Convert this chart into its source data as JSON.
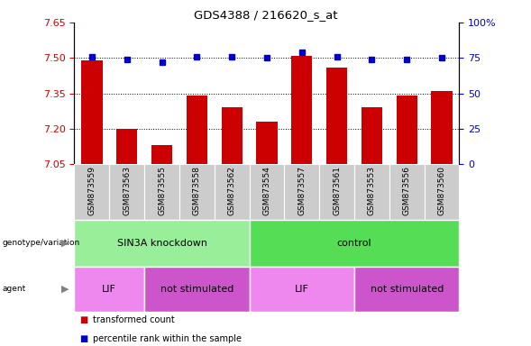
{
  "title": "GDS4388 / 216620_s_at",
  "samples": [
    "GSM873559",
    "GSM873563",
    "GSM873555",
    "GSM873558",
    "GSM873562",
    "GSM873554",
    "GSM873557",
    "GSM873561",
    "GSM873553",
    "GSM873556",
    "GSM873560"
  ],
  "bar_values": [
    7.49,
    7.2,
    7.13,
    7.34,
    7.29,
    7.23,
    7.51,
    7.46,
    7.29,
    7.34,
    7.36
  ],
  "percentile_values": [
    76,
    74,
    72,
    76,
    76,
    75,
    79,
    76,
    74,
    74,
    75
  ],
  "bar_color": "#cc0000",
  "percentile_color": "#0000cc",
  "ylim_left": [
    7.05,
    7.65
  ],
  "ylim_right": [
    0,
    100
  ],
  "yticks_left": [
    7.05,
    7.2,
    7.35,
    7.5,
    7.65
  ],
  "yticks_right": [
    0,
    25,
    50,
    75,
    100
  ],
  "ytick_labels_right": [
    "0",
    "25",
    "50",
    "75",
    "100%"
  ],
  "grid_values": [
    7.2,
    7.35,
    7.5
  ],
  "groups": [
    {
      "label": "SIN3A knockdown",
      "start": 0,
      "end": 4,
      "color": "#99ee99"
    },
    {
      "label": "control",
      "start": 5,
      "end": 10,
      "color": "#55dd55"
    }
  ],
  "agents": [
    {
      "label": "LIF",
      "start": 0,
      "end": 1,
      "color": "#ee88ee"
    },
    {
      "label": "not stimulated",
      "start": 2,
      "end": 4,
      "color": "#cc55cc"
    },
    {
      "label": "LIF",
      "start": 5,
      "end": 7,
      "color": "#ee88ee"
    },
    {
      "label": "not stimulated",
      "start": 8,
      "end": 10,
      "color": "#cc55cc"
    }
  ],
  "sample_bg_color": "#cccccc",
  "legend_items": [
    {
      "label": "transformed count",
      "color": "#cc0000"
    },
    {
      "label": "percentile rank within the sample",
      "color": "#0000cc"
    }
  ],
  "bar_width": 0.6
}
